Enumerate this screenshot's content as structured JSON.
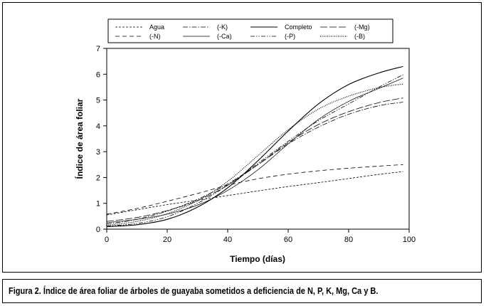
{
  "caption": "Figura 2. Índice de área foliar de árboles de guayaba sometidos a deficiencia de N, P, K, Mg, Ca y B.",
  "chart_data": {
    "type": "line",
    "xlabel": "Tiempo (días)",
    "ylabel": "Índice de área foliar",
    "xlim": [
      0,
      100
    ],
    "ylim": [
      0,
      7
    ],
    "xticks": [
      0,
      20,
      40,
      60,
      80,
      100
    ],
    "yticks": [
      0,
      1,
      2,
      3,
      4,
      5,
      6,
      7
    ],
    "grid": false,
    "legend_position": "top",
    "x": [
      0,
      10,
      20,
      30,
      40,
      50,
      60,
      70,
      80,
      90,
      98
    ],
    "series": [
      {
        "name": "Agua",
        "dash": "dashed-short",
        "values": [
          0.55,
          0.75,
          0.95,
          1.12,
          1.3,
          1.48,
          1.65,
          1.8,
          1.96,
          2.12,
          2.23
        ]
      },
      {
        "name": "(-K)",
        "dash": "dash-dot",
        "values": [
          0.2,
          0.38,
          0.7,
          1.15,
          1.75,
          2.5,
          3.3,
          3.95,
          4.45,
          4.78,
          4.92
        ]
      },
      {
        "name": "Completo",
        "dash": "solid",
        "values": [
          0.1,
          0.17,
          0.38,
          0.85,
          1.6,
          2.65,
          3.8,
          4.85,
          5.6,
          6.05,
          6.3
        ]
      },
      {
        "name": "(-Mg)",
        "dash": "long-dash",
        "values": [
          0.3,
          0.45,
          0.72,
          1.1,
          1.7,
          2.5,
          3.35,
          4.05,
          4.55,
          4.9,
          5.08
        ]
      },
      {
        "name": "(-N)",
        "dash": "dashed-medium",
        "values": [
          0.58,
          0.8,
          1.08,
          1.38,
          1.7,
          1.95,
          2.13,
          2.26,
          2.36,
          2.44,
          2.5
        ]
      },
      {
        "name": "(-Ca)",
        "dash": "solid-thin",
        "values": [
          0.25,
          0.38,
          0.58,
          0.93,
          1.5,
          2.3,
          3.3,
          4.25,
          4.95,
          5.45,
          5.85
        ]
      },
      {
        "name": "(-P)",
        "dash": "dash-dot-dot",
        "values": [
          0.12,
          0.22,
          0.48,
          1.0,
          1.7,
          2.55,
          3.4,
          4.2,
          4.85,
          5.5,
          5.98
        ]
      },
      {
        "name": "(-B)",
        "dash": "dotted",
        "values": [
          0.15,
          0.3,
          0.6,
          1.1,
          1.85,
          2.85,
          3.85,
          4.65,
          5.15,
          5.48,
          5.62
        ]
      }
    ]
  }
}
